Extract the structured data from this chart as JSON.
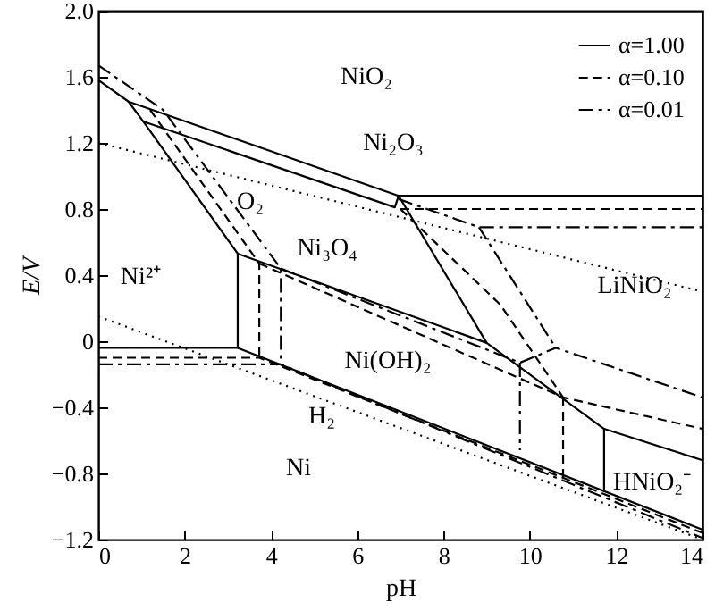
{
  "chart_data": {
    "type": "line",
    "xlabel": "pH",
    "ylabel": "E/V",
    "xlim": [
      0,
      14
    ],
    "xticks": [
      0,
      2,
      4,
      6,
      8,
      10,
      12,
      14
    ],
    "ylim": [
      -1.2,
      2.0
    ],
    "yticks": [
      {
        "value": -1.2,
        "label": "−1.2"
      },
      {
        "value": -0.8,
        "label": "−0.8"
      },
      {
        "value": -0.4,
        "label": "−0.4"
      },
      {
        "value": 0,
        "label": "0"
      },
      {
        "value": 0.4,
        "label": "0.4"
      },
      {
        "value": 0.8,
        "label": "0.8"
      },
      {
        "value": 1.2,
        "label": "1.2"
      },
      {
        "value": 1.6,
        "label": "1.6"
      },
      {
        "value": 2.0,
        "label": "2.0"
      }
    ],
    "legend": "top right",
    "grid": false,
    "series": [
      {
        "name": "α=1.00",
        "color": "#000000",
        "line_style": "solid",
        "x": [
          0,
          0.7,
          6.96,
          14
        ],
        "values": [
          1.58,
          1.45,
          0.88,
          0.88
        ]
      },
      {
        "name": "α=0.10",
        "color": "#000000",
        "line_style": "dashed",
        "x": [
          1.2,
          3.73,
          3.73
        ],
        "values": [
          1.4,
          0.47,
          -0.1
        ]
      },
      {
        "name": "α=0.01",
        "color": "#000000",
        "line_style": "dashdot",
        "x": [
          0,
          1.5,
          4.23,
          4.23
        ],
        "values": [
          1.67,
          1.4,
          0.44,
          -0.14
        ]
      },
      {
        "color": "#000000",
        "line_style": "solid",
        "x": [
          0.7,
          1.04,
          6.87,
          6.96
        ],
        "values": [
          1.45,
          1.33,
          0.81,
          0.88
        ]
      },
      {
        "color": "#000000",
        "line_style": "solid",
        "x": [
          1.04,
          3.23,
          3.23
        ],
        "values": [
          1.33,
          0.53,
          -0.04
        ]
      },
      {
        "color": "#000000",
        "line_style": "solid",
        "x": [
          0,
          3.23,
          14
        ],
        "values": [
          -0.04,
          -0.04,
          -1.14
        ]
      },
      {
        "color": "#000000",
        "line_style": "solid",
        "x": [
          3.23,
          9.0,
          11.72,
          14
        ],
        "values": [
          0.53,
          -0.01,
          -0.53,
          -0.72
        ]
      },
      {
        "color": "#000000",
        "line_style": "solid",
        "x": [
          6.96,
          9.0
        ],
        "values": [
          0.88,
          -0.01
        ]
      },
      {
        "color": "#000000",
        "line_style": "solid",
        "x": [
          11.72,
          11.72
        ],
        "values": [
          -0.53,
          -0.91
        ]
      },
      {
        "color": "#000000",
        "line_style": "dashed",
        "x": [
          0,
          3.73,
          14
        ],
        "values": [
          -0.1,
          -0.1,
          -1.16
        ]
      },
      {
        "color": "#000000",
        "line_style": "dashed",
        "x": [
          7.0,
          14
        ],
        "values": [
          0.8,
          0.8
        ]
      },
      {
        "color": "#000000",
        "line_style": "dashed",
        "x": [
          7.0,
          9.32,
          10.77
        ],
        "values": [
          0.8,
          0.22,
          -0.34
        ]
      },
      {
        "color": "#000000",
        "line_style": "dashed",
        "x": [
          3.73,
          10.77,
          14
        ],
        "values": [
          0.47,
          -0.34,
          -0.53
        ]
      },
      {
        "color": "#000000",
        "line_style": "dashed",
        "x": [
          10.77,
          10.77
        ],
        "values": [
          -0.34,
          -0.83
        ]
      },
      {
        "color": "#000000",
        "line_style": "dashdot",
        "x": [
          0,
          4.23,
          14
        ],
        "values": [
          -0.14,
          -0.14,
          -1.19
        ]
      },
      {
        "color": "#000000",
        "line_style": "dashdot",
        "x": [
          4.23,
          9.77,
          10.6,
          14
        ],
        "values": [
          0.44,
          -0.13,
          -0.04,
          -0.34
        ]
      },
      {
        "color": "#000000",
        "line_style": "dashdot",
        "x": [
          6.96,
          8.82,
          14
        ],
        "values": [
          0.86,
          0.69,
          0.69
        ]
      },
      {
        "color": "#000000",
        "line_style": "dashdot",
        "x": [
          8.82,
          10.6
        ],
        "values": [
          0.69,
          -0.04
        ]
      },
      {
        "color": "#000000",
        "line_style": "dashdot",
        "x": [
          9.77,
          9.77
        ],
        "values": [
          -0.13,
          -0.66
        ]
      },
      {
        "color": "#000000",
        "line_style": "dotted",
        "x": [
          0,
          14
        ],
        "values": [
          1.2,
          0.3
        ]
      },
      {
        "color": "#000000",
        "line_style": "dotted",
        "x": [
          0,
          14
        ],
        "values": [
          0.15,
          -1.2
        ]
      }
    ],
    "annotations": [
      "NiO₂",
      "Ni₂O₃",
      "O₂",
      "Ni₃O₄",
      "Ni²⁺",
      "LiNiO₂",
      "Ni(OH)₂",
      "H₂",
      "Ni",
      "HNiO₂⁻"
    ]
  }
}
